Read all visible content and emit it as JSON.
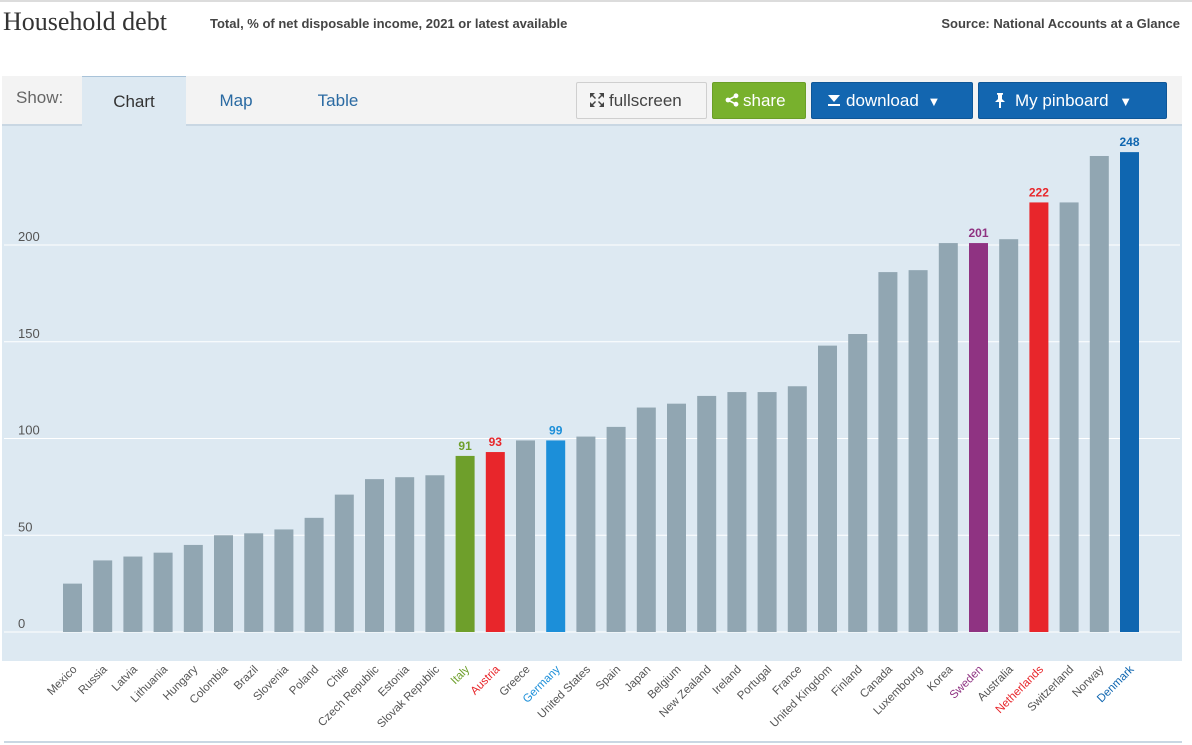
{
  "header": {
    "title": "Household debt",
    "subtitle": "Total, % of net disposable income, 2021 or latest available",
    "source": "Source: National Accounts at a Glance"
  },
  "toolbar": {
    "show_label": "Show:",
    "tabs": [
      {
        "label": "Chart",
        "active": true
      },
      {
        "label": "Map",
        "active": false
      },
      {
        "label": "Table",
        "active": false
      }
    ],
    "fullscreen_label": "fullscreen",
    "share_label": "share",
    "download_label": "download",
    "pinboard_label": "My pinboard",
    "dropdown_glyph": "▼",
    "fullscreen_icon": "expand-icon",
    "share_icon": "share-icon",
    "download_icon": "download-icon",
    "pinboard_icon": "pin-icon"
  },
  "colors": {
    "default_bar": "#91a6b2",
    "italy": "#6e9f2b",
    "austria": "#e8262b",
    "germany": "#1c8fd9",
    "sweden": "#8f3382",
    "netherlands": "#e8262b",
    "denmark": "#0f66b0",
    "background": "#dde9f2"
  },
  "chart_data": {
    "type": "bar",
    "title": "Household debt",
    "subtitle": "Total, % of net disposable income, 2021 or latest available",
    "xlabel": "",
    "ylabel": "",
    "ylim": [
      0,
      250
    ],
    "yticks": [
      0,
      50,
      100,
      150,
      200
    ],
    "grid": true,
    "categories": [
      "Mexico",
      "Russia",
      "Latvia",
      "Lithuania",
      "Hungary",
      "Colombia",
      "Brazil",
      "Slovenia",
      "Poland",
      "Chile",
      "Czech Republic",
      "Estonia",
      "Slovak Republic",
      "Italy",
      "Austria",
      "Greece",
      "Germany",
      "United States",
      "Spain",
      "Japan",
      "Belgium",
      "New Zealand",
      "Ireland",
      "Portugal",
      "France",
      "United Kingdom",
      "Finland",
      "Canada",
      "Luxembourg",
      "Korea",
      "Sweden",
      "Australia",
      "Netherlands",
      "Switzerland",
      "Norway",
      "Denmark"
    ],
    "values": [
      25,
      37,
      39,
      41,
      45,
      50,
      51,
      53,
      59,
      71,
      79,
      80,
      81,
      91,
      93,
      99,
      99,
      101,
      106,
      116,
      118,
      122,
      124,
      124,
      127,
      148,
      154,
      186,
      187,
      201,
      201,
      203,
      222,
      222,
      246,
      248
    ],
    "highlights": [
      {
        "category": "Italy",
        "label": "91",
        "color_key": "italy"
      },
      {
        "category": "Austria",
        "label": "93",
        "color_key": "austria"
      },
      {
        "category": "Germany",
        "label": "99",
        "color_key": "germany"
      },
      {
        "category": "Sweden",
        "label": "201",
        "color_key": "sweden"
      },
      {
        "category": "Netherlands",
        "label": "222",
        "color_key": "netherlands"
      },
      {
        "category": "Denmark",
        "label": "248",
        "color_key": "denmark"
      }
    ]
  }
}
